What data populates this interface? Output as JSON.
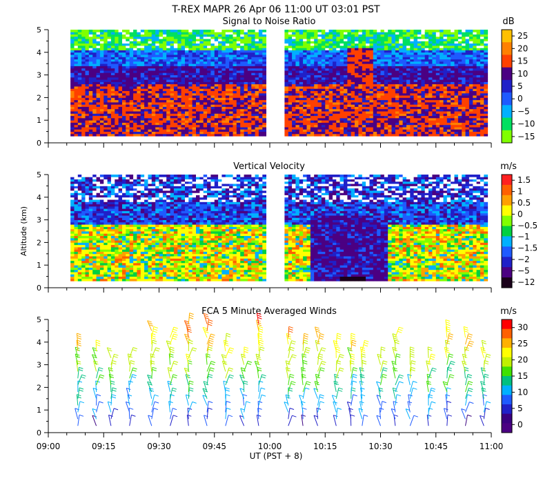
{
  "header": {
    "title": "T-REX  MAPR 26 Apr 06  11:00 UT  03:01  PST"
  },
  "axis_common": {
    "ylabel": "Altitude (km)",
    "xlabel": "UT  (PST + 8)",
    "x_ticks": [
      "09:00",
      "09:15",
      "09:30",
      "09:45",
      "10:00",
      "10:15",
      "10:30",
      "10:45",
      "11:00"
    ],
    "y_ticks": [
      "0",
      "1",
      "2",
      "3",
      "4",
      "5"
    ],
    "ylim": [
      0,
      5
    ]
  },
  "chart_data": [
    {
      "type": "heatmap",
      "title": "Signal to Noise Ratio",
      "units": "dB",
      "x_range": [
        "09:00",
        "11:00"
      ],
      "y_range_km": [
        0,
        5
      ],
      "data_gap": [
        "09:59",
        "10:04"
      ],
      "colorbar": {
        "labels": [
          "25",
          "20",
          "15",
          "10",
          "5",
          "0",
          "−5",
          "−10",
          "−15"
        ],
        "colors": [
          "#ffc000",
          "#ff8000",
          "#ff4000",
          "#4b0082",
          "#2020c8",
          "#1e5aff",
          "#00b0ff",
          "#00e060",
          "#80ff00"
        ]
      }
    },
    {
      "type": "heatmap",
      "title": "Vertical Velocity",
      "units": "m/s",
      "x_range": [
        "09:00",
        "11:00"
      ],
      "y_range_km": [
        0,
        5
      ],
      "data_gap": [
        "09:59",
        "10:04"
      ],
      "colorbar": {
        "labels": [
          "1.5",
          "1",
          "0.5",
          "0",
          "−0.5",
          "−1",
          "−1.5",
          "−2",
          "−5",
          "−12"
        ],
        "colors": [
          "#ff2020",
          "#ff6000",
          "#ffa000",
          "#ffff00",
          "#80ff00",
          "#00d040",
          "#00b0ff",
          "#1e5aff",
          "#2020c8",
          "#4b0082",
          "#1a001a"
        ]
      }
    },
    {
      "type": "barbs",
      "title": "FCA 5 Minute Averaged Winds",
      "units": "m/s",
      "x_range": [
        "09:00",
        "11:00"
      ],
      "y_range_km": [
        0,
        5
      ],
      "colorbar": {
        "labels": [
          "30",
          "25",
          "20",
          "15",
          "10",
          "5",
          "0"
        ],
        "colors": [
          "#ff0000",
          "#ff6000",
          "#ffb000",
          "#ffff00",
          "#c0f000",
          "#40e000",
          "#00c080",
          "#00b0ff",
          "#1e5aff",
          "#2020c8",
          "#3a0080",
          "#4b0082"
        ]
      }
    }
  ]
}
